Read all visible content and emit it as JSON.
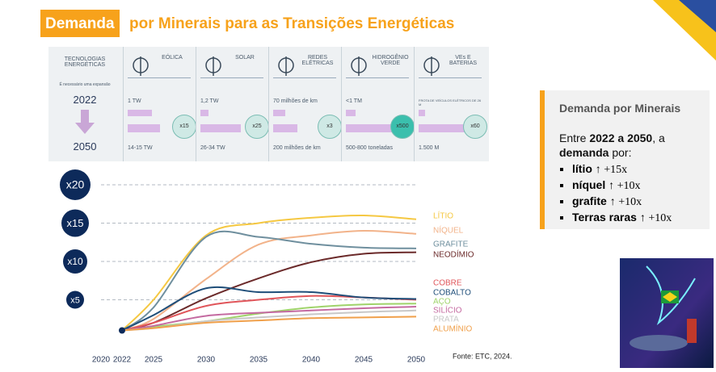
{
  "header": {
    "title_highlight": "Demanda",
    "title_rest": "por Minerais para as Transições Energéticas"
  },
  "technologies": {
    "label": "TECNOLOGIAS ENERGÉTICAS",
    "note": "É necessário uma expansão",
    "year_start": "2022",
    "year_end": "2050",
    "columns": [
      {
        "name": "EÓLICA",
        "now": "1 TW",
        "future": "14-15 TW",
        "factor": "x15"
      },
      {
        "name": "SOLAR",
        "now": "1,2 TW",
        "future": "26-34 TW",
        "factor": "x25"
      },
      {
        "name": "REDES ELÉTRICAS",
        "now": "70 milhões de km",
        "future": "200 milhões de km",
        "factor": "x3"
      },
      {
        "name": "HIDROGÊNIO VERDE",
        "now": "<1 TM",
        "future": "500-800 toneladas",
        "factor": "x500"
      },
      {
        "name": "VEs E BATERIAS",
        "now": "FROTA DE VEÍCULOS ELÉTRICOS DE 26 M",
        "future": "1.500 M",
        "factor": "x60"
      }
    ]
  },
  "chart_data": {
    "type": "line",
    "source": "Fonte: ETC, 2024.",
    "x": [
      2022,
      2025,
      2030,
      2035,
      2040,
      2045,
      2050
    ],
    "xlim": [
      2020,
      2050
    ],
    "xticks": [
      2020,
      2022,
      2025,
      2030,
      2035,
      2040,
      2045,
      2050
    ],
    "ylim": [
      0,
      22
    ],
    "yticks": [
      {
        "value": 5,
        "label": "x5"
      },
      {
        "value": 10,
        "label": "x10"
      },
      {
        "value": 15,
        "label": "x15"
      },
      {
        "value": 20,
        "label": "x20"
      }
    ],
    "grid": true,
    "series": [
      {
        "name": "LÍTIO",
        "color": "#f5c842",
        "values": [
          1,
          5,
          13.4,
          15,
          15.7,
          16,
          15.5
        ]
      },
      {
        "name": "NÍQUEL",
        "color": "#f2b38a",
        "values": [
          1,
          2.5,
          7.7,
          12.2,
          13.4,
          14,
          13.6
        ]
      },
      {
        "name": "GRAFITE",
        "color": "#6f8f9e",
        "values": [
          1,
          4,
          13.2,
          13.2,
          12.3,
          11.8,
          11.7
        ]
      },
      {
        "name": "NEODÍMIO",
        "color": "#6b2a2a",
        "values": [
          1,
          2,
          5.2,
          7.8,
          9.9,
          11,
          11.2
        ]
      },
      {
        "name": "COBRE",
        "color": "#e0555a",
        "values": [
          1,
          2,
          4.2,
          5,
          5.5,
          5.3,
          5
        ]
      },
      {
        "name": "COBALTO",
        "color": "#1f4e79",
        "values": [
          1,
          3,
          6.5,
          6,
          6,
          5.3,
          5.1
        ]
      },
      {
        "name": "AÇO",
        "color": "#9fd36a",
        "values": [
          1,
          1.5,
          2.2,
          3.2,
          4,
          4.4,
          4.5
        ]
      },
      {
        "name": "SILÍCIO",
        "color": "#c46aa0",
        "values": [
          1,
          1.6,
          2.9,
          3.3,
          3.6,
          3.9,
          4.1
        ]
      },
      {
        "name": "PRATA",
        "color": "#c8c8c8",
        "values": [
          1,
          1.3,
          2.2,
          2.7,
          3.1,
          3.4,
          3.6
        ]
      },
      {
        "name": "ALUMÍNIO",
        "color": "#f0a04b",
        "values": [
          1,
          1.3,
          2,
          2.3,
          2.6,
          2.7,
          2.8
        ]
      }
    ]
  },
  "sidebox": {
    "title": "Demanda por Minerais",
    "intro_pre": "Entre",
    "intro_years": "2022 a 2050",
    "intro_mid": ", a",
    "intro_bold": "demanda",
    "intro_post": "por:",
    "items": [
      {
        "name": "lítio",
        "change": "↑ +15x"
      },
      {
        "name": "níquel",
        "change": "↑ +10x"
      },
      {
        "name": "grafite",
        "change": "↑ +10x"
      },
      {
        "name": "Terras raras",
        "change": "↑ +10x"
      }
    ]
  }
}
